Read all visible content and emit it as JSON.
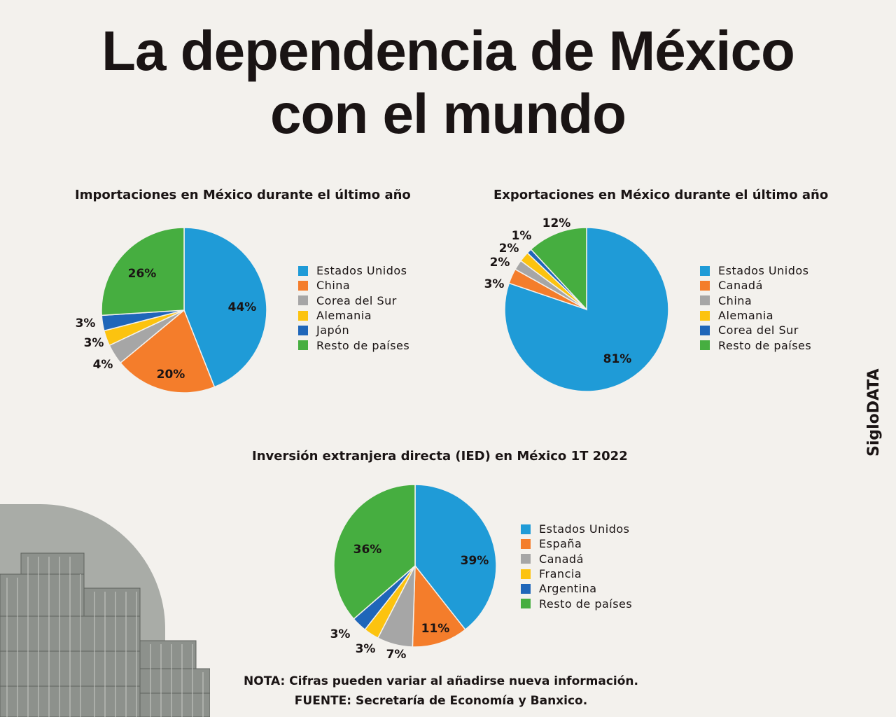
{
  "title": {
    "line1": "La dependencia de México",
    "line2": "con el mundo"
  },
  "brand": "SigloDATA",
  "note": "NOTA: Cifras pueden variar al añadirse nueva información.",
  "source": "FUENTE: Secretaría de Economía y Banxico.",
  "colors": {
    "blue": "#1f9bd7",
    "orange": "#f47d2b",
    "gray": "#a6a6a6",
    "yellow": "#fcc30f",
    "darkblue": "#1f66b9",
    "green": "#46ae40",
    "background": "#f3f1ed"
  },
  "chart_data": [
    {
      "type": "pie",
      "title": "Importaciones en México durante el  último año",
      "legend": "right",
      "labels": [
        "Estados Unidos",
        "China",
        "Corea del Sur",
        "Alemania",
        "Japón",
        "Resto de países"
      ],
      "values": [
        44,
        20,
        4,
        3,
        3,
        26
      ],
      "value_labels": [
        "44%",
        "20%",
        "4%",
        "3%",
        "3%",
        "26%"
      ],
      "colors": [
        "#1f9bd7",
        "#f47d2b",
        "#a6a6a6",
        "#fcc30f",
        "#1f66b9",
        "#46ae40"
      ]
    },
    {
      "type": "pie",
      "title": "Exportaciones en México durante el último año",
      "legend": "right",
      "labels": [
        "Estados Unidos",
        "Canadá",
        "China",
        "Alemania",
        "Corea del Sur",
        "Resto de países"
      ],
      "values": [
        81,
        3,
        2,
        2,
        1,
        12
      ],
      "value_labels": [
        "81%",
        "3%",
        "2%",
        "2%",
        "1%",
        "12%"
      ],
      "colors": [
        "#1f9bd7",
        "#f47d2b",
        "#a6a6a6",
        "#fcc30f",
        "#1f66b9",
        "#46ae40"
      ]
    },
    {
      "type": "pie",
      "title": "Inversión extranjera directa (IED) en México 1T 2022",
      "legend": "right",
      "labels": [
        "Estados Unidos",
        "España",
        "Canadá",
        "Francia",
        "Argentina",
        "Resto de países"
      ],
      "values": [
        39,
        11,
        7,
        3,
        3,
        36
      ],
      "value_labels": [
        "39%",
        "11%",
        "7%",
        "3%",
        "3%",
        "36%"
      ],
      "colors": [
        "#1f9bd7",
        "#f47d2b",
        "#a6a6a6",
        "#fcc30f",
        "#1f66b9",
        "#46ae40"
      ]
    }
  ]
}
